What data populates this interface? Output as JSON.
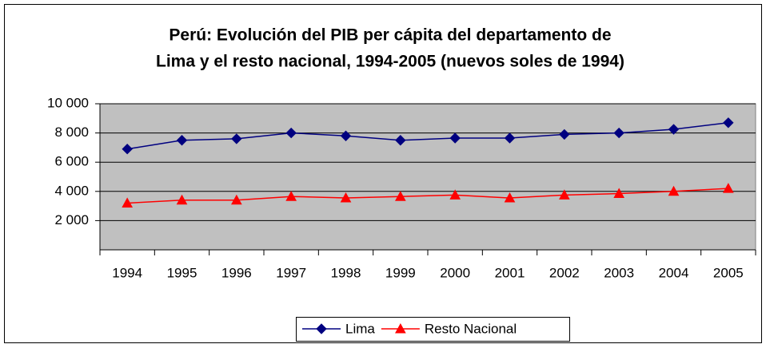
{
  "chart_data": {
    "type": "line",
    "title": [
      "Perú: Evolución del PIB per cápita del departamento de",
      "Lima y el resto nacional, 1994-2005 (nuevos soles de 1994)"
    ],
    "categories": [
      "1994",
      "1995",
      "1996",
      "1997",
      "1998",
      "1999",
      "2000",
      "2001",
      "2002",
      "2003",
      "2004",
      "2005"
    ],
    "series": [
      {
        "name": "Lima",
        "color": "#000080",
        "marker": "diamond",
        "values": [
          6900,
          7500,
          7600,
          8000,
          7800,
          7500,
          7650,
          7650,
          7900,
          8000,
          8250,
          8700
        ]
      },
      {
        "name": "Resto Nacional",
        "color": "#ff0000",
        "marker": "triangle",
        "values": [
          3200,
          3400,
          3400,
          3650,
          3550,
          3650,
          3750,
          3550,
          3750,
          3850,
          4000,
          4200
        ]
      }
    ],
    "ylim": [
      0,
      10000
    ],
    "yticks": [
      {
        "value": 2000,
        "label": "2 000"
      },
      {
        "value": 4000,
        "label": "4 000"
      },
      {
        "value": 6000,
        "label": "6 000"
      },
      {
        "value": 8000,
        "label": "8 000"
      },
      {
        "value": 10000,
        "label": "10 000"
      }
    ],
    "grid": true,
    "legend": "bottom",
    "plot_background": "#c0c0c0"
  }
}
